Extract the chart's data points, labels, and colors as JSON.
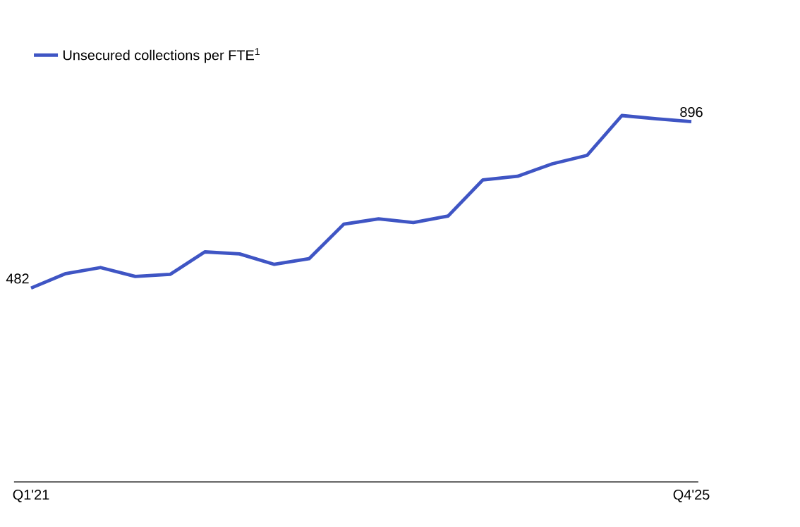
{
  "chart_data": {
    "type": "line",
    "categories": [
      "Q1'21",
      null,
      null,
      null,
      null,
      null,
      null,
      null,
      null,
      null,
      null,
      null,
      null,
      null,
      null,
      null,
      null,
      null,
      null,
      "Q4'25"
    ],
    "series": [
      {
        "name": "Unsecured collections per FTE$^{1}$",
        "color": "#3f55c4",
        "values": [
          482,
          518,
          533,
          511,
          516,
          572,
          567,
          541,
          555,
          641,
          654,
          645,
          661,
          751,
          760,
          791,
          812,
          911,
          903,
          896
        ],
        "value_labels": [
          "482",
          null,
          null,
          null,
          null,
          null,
          null,
          null,
          null,
          null,
          null,
          null,
          null,
          null,
          null,
          null,
          null,
          null,
          null,
          "896"
        ]
      }
    ],
    "tick_labels": "x",
    "legend": "top left",
    "marker": "none",
    "line_style": "solid",
    "grid": false
  }
}
